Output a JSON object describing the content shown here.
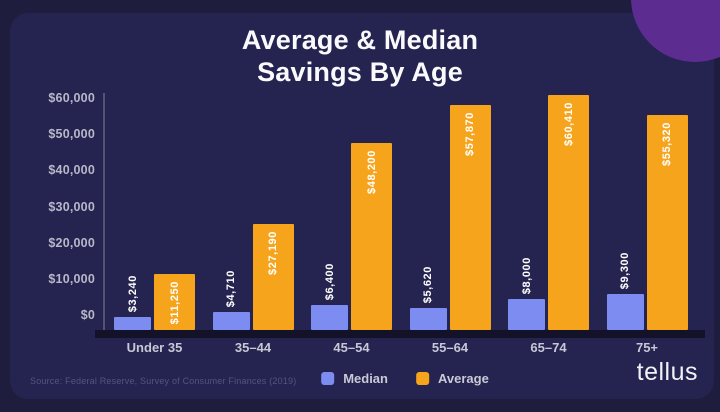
{
  "page": {
    "background": "#1e1d3d",
    "card_background": "#252350",
    "accent_circle_color": "#5c2c91"
  },
  "title": {
    "line1": "Average & Median",
    "line2": "Savings By Age"
  },
  "chart_data": {
    "type": "bar",
    "title": "Average & Median Savings By Age",
    "categories": [
      "Under 35",
      "35–44",
      "45–54",
      "55–64",
      "65–74",
      "75+"
    ],
    "series": [
      {
        "name": "Median",
        "color": "#7c8cf0",
        "values": [
          3240,
          4710,
          6400,
          5620,
          8000,
          9300
        ],
        "labels": [
          "$3,240",
          "$4,710",
          "$6,400",
          "$5,620",
          "$8,000",
          "$9,300"
        ]
      },
      {
        "name": "Average",
        "color": "#f7a41d",
        "values": [
          11250,
          27190,
          48200,
          57870,
          60410,
          55320
        ],
        "labels": [
          "$11,250",
          "$27,190",
          "$48,200",
          "$57,870",
          "$60,410",
          "$55,320"
        ]
      }
    ],
    "y_ticks": [
      {
        "value": 60000,
        "label": "$60,000"
      },
      {
        "value": 50000,
        "label": "$50,000"
      },
      {
        "value": 40000,
        "label": "$40,000"
      },
      {
        "value": 30000,
        "label": "$30,000"
      },
      {
        "value": 20000,
        "label": "$20,000"
      },
      {
        "value": 10000,
        "label": "$10,000"
      },
      {
        "value": 0,
        "label": "$0"
      }
    ],
    "ylim": [
      0,
      60000
    ],
    "grid": false,
    "legend_position": "bottom",
    "value_label_rotation": "vertical"
  },
  "footer": {
    "source": "Source: Federal Reserve, Survey of Consumer Finances (2019)",
    "logo": "tellus"
  }
}
